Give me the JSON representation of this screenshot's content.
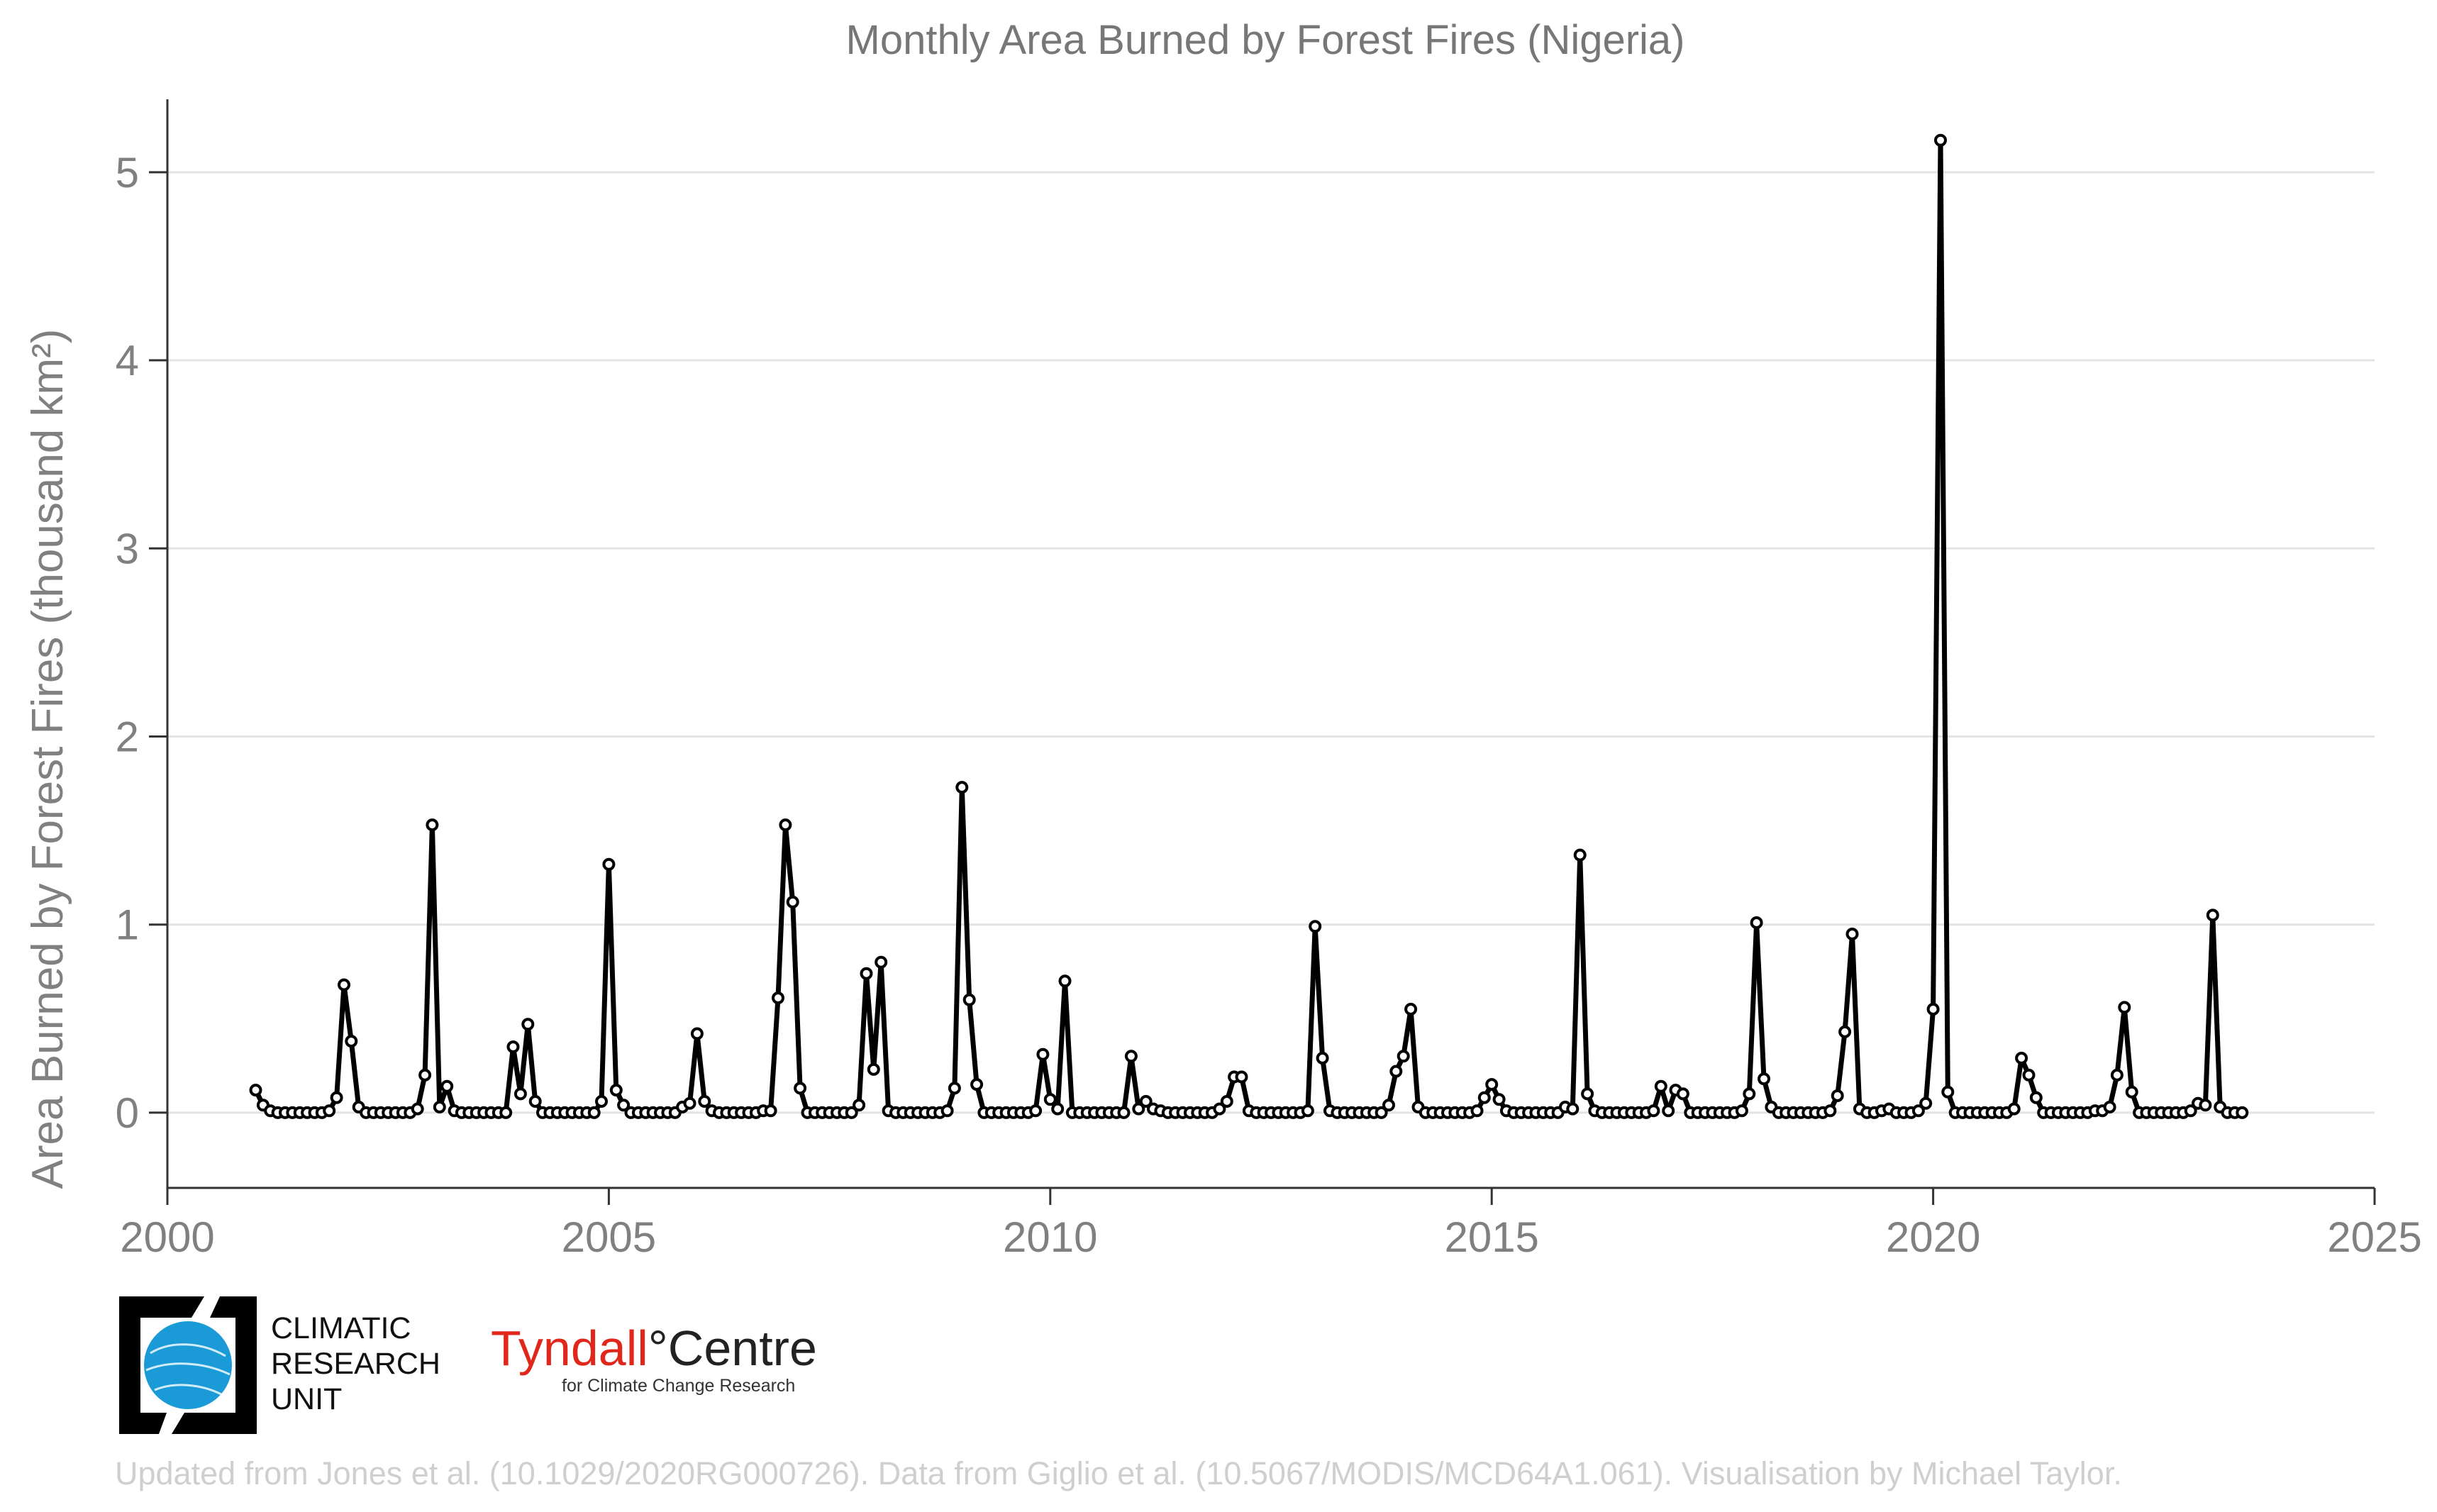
{
  "chart_data": {
    "type": "line",
    "title": "Monthly Area Burned by Forest Fires (Nigeria)",
    "ylabel": "Area Burned by Forest Fires (thousand km²)",
    "xlabel": "",
    "xlim": [
      2000,
      2025
    ],
    "ylim": [
      -0.4,
      5.35
    ],
    "xticks": [
      "2000",
      "2005",
      "2010",
      "2015",
      "2020",
      "2025"
    ],
    "yticks": [
      "0",
      "1",
      "2",
      "3",
      "4",
      "5"
    ],
    "grid": "horizontal",
    "x_start": "2001-01",
    "x_step": "month",
    "series": [
      {
        "color": "#000000",
        "values": [
          0.12,
          0.04,
          0.01,
          0,
          0,
          0,
          0,
          0,
          0,
          0,
          0.01,
          0.08,
          0.68,
          0.38,
          0.03,
          0,
          0,
          0,
          0,
          0,
          0,
          0,
          0.02,
          0.2,
          1.53,
          0.03,
          0.14,
          0.01,
          0,
          0,
          0,
          0,
          0,
          0,
          0,
          0.35,
          0.1,
          0.47,
          0.06,
          0,
          0,
          0,
          0,
          0,
          0,
          0,
          0,
          0.06,
          1.32,
          0.12,
          0.04,
          0,
          0,
          0,
          0,
          0,
          0,
          0,
          0.03,
          0.05,
          0.42,
          0.06,
          0.01,
          0,
          0,
          0,
          0,
          0,
          0,
          0.01,
          0.01,
          0.61,
          1.53,
          1.12,
          0.13,
          0,
          0,
          0,
          0,
          0,
          0,
          0,
          0.04,
          0.74,
          0.23,
          0.8,
          0.01,
          0,
          0,
          0,
          0,
          0,
          0,
          0,
          0.01,
          0.13,
          1.73,
          0.6,
          0.15,
          0,
          0,
          0,
          0,
          0,
          0,
          0,
          0.01,
          0.31,
          0.07,
          0.02,
          0.7,
          0,
          0,
          0,
          0,
          0,
          0,
          0,
          0,
          0.3,
          0.02,
          0.06,
          0.02,
          0.01,
          0,
          0,
          0,
          0,
          0,
          0,
          0,
          0.02,
          0.06,
          0.19,
          0.19,
          0.01,
          0,
          0,
          0,
          0,
          0,
          0,
          0,
          0.01,
          0.99,
          0.29,
          0.01,
          0,
          0,
          0,
          0,
          0,
          0,
          0,
          0.04,
          0.22,
          0.3,
          0.55,
          0.03,
          0,
          0,
          0,
          0,
          0,
          0,
          0,
          0.01,
          0.08,
          0.15,
          0.07,
          0.01,
          0,
          0,
          0,
          0,
          0,
          0,
          0,
          0.03,
          0.02,
          1.37,
          0.1,
          0.01,
          0,
          0,
          0,
          0,
          0,
          0,
          0,
          0.01,
          0.14,
          0.01,
          0.12,
          0.1,
          0,
          0,
          0,
          0,
          0,
          0,
          0,
          0.01,
          0.1,
          1.01,
          0.18,
          0.03,
          0,
          0,
          0,
          0,
          0,
          0,
          0,
          0.01,
          0.09,
          0.43,
          0.95,
          0.02,
          0,
          0,
          0.01,
          0.02,
          0,
          0,
          0,
          0.01,
          0.05,
          0.55,
          5.17,
          0.11,
          0,
          0,
          0,
          0,
          0,
          0,
          0,
          0,
          0.02,
          0.29,
          0.2,
          0.08,
          0,
          0,
          0,
          0,
          0,
          0,
          0,
          0.01,
          0.01,
          0.03,
          0.2,
          0.56,
          0.11,
          0,
          0,
          0,
          0,
          0,
          0,
          0,
          0.01,
          0.05,
          0.04,
          1.05,
          0.03,
          0,
          0,
          0
        ]
      }
    ]
  },
  "logos": {
    "cru_lines": [
      "CLIMATIC",
      "RESEARCH",
      "UNIT"
    ],
    "tyndall_name": "Tyndall",
    "tyndall_degree": "°",
    "tyndall_centre": "Centre",
    "tyndall_sub": "for Climate Change Research"
  },
  "footer": {
    "note": "Updated from Jones et al. (10.1029/2020RG000726). Data from Giglio et al. (10.5067/MODIS/MCD64A1.061). Visualisation by Michael Taylor."
  },
  "colors": {
    "tyndall_red": "#e1271b",
    "cru_blue": "#1a9bd7"
  }
}
